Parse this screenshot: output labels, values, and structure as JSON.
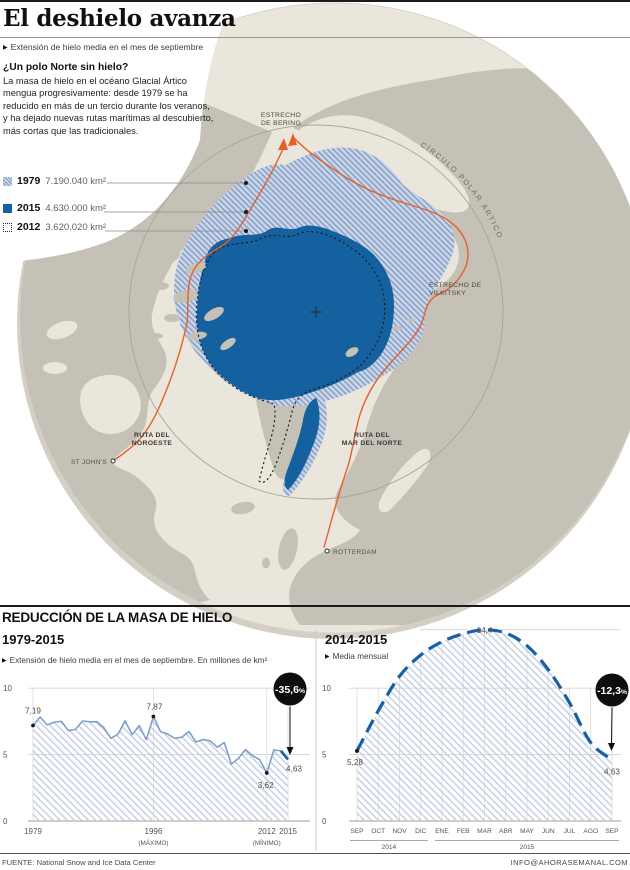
{
  "header": {
    "title": "El deshielo avanza",
    "subtitle": "Extensión de hielo media en el mes de septiembre",
    "bullet": "▶"
  },
  "intro": {
    "heading": "¿Un polo Norte sin hielo?",
    "body": "La masa de hielo en el océano Glacial Ártico mengua progresivamente: desde 1979 se ha reducido en más de un tercio durante los veranos, y ha dejado nuevas rutas marítimas al descubierto, más cortas que las tradicionales."
  },
  "legend": {
    "items": [
      {
        "year": "1979",
        "value": "7.190.040 km²",
        "swatch": "hatched"
      },
      {
        "year": "2015",
        "value": "4.630.000 km²",
        "swatch": "solid"
      },
      {
        "year": "2012",
        "value": "3.620.020 km²",
        "swatch": "dotted"
      }
    ]
  },
  "map": {
    "labels": {
      "bering": [
        "ESTRECHO",
        "DE BERING"
      ],
      "polar_circle": "CÍRCULO POLAR ÁRTICO",
      "vilkitsky": [
        "ESTRECHO DE",
        "VILKITSKY"
      ],
      "noroeste": [
        "RUTA DEL",
        "NOROESTE"
      ],
      "mar_norte": [
        "RUTA DEL",
        "MAR DEL NORTE"
      ],
      "st_johns": "ST JOHN'S",
      "rotterdam": "ROTTERDAM"
    },
    "palette": {
      "globe": "#ebe6dc",
      "globe_shadow": "#d3cfc5",
      "land": "#c6c1b7",
      "ice_2015": "#15619f",
      "ice_1979_bg": "#cdd6e7",
      "ice_1979_stripe": "#7d9bc6",
      "ice_2012_outline": "#1a1a1a",
      "route": "#e4602a",
      "polar_circle_line": "#a8a399"
    }
  },
  "section": {
    "title": "REDUCCIÓN DE LA MASA DE HIELO"
  },
  "chart_data": [
    {
      "type": "area",
      "title": "1979-2015",
      "subtitle": "Extensión de hielo media en el mes de septiembre. En millones de km²",
      "x": [
        1979,
        1980,
        1981,
        1982,
        1983,
        1984,
        1985,
        1986,
        1987,
        1988,
        1989,
        1990,
        1991,
        1992,
        1993,
        1994,
        1995,
        1996,
        1997,
        1998,
        1999,
        2000,
        2001,
        2002,
        2003,
        2004,
        2005,
        2006,
        2007,
        2008,
        2009,
        2010,
        2011,
        2012,
        2013,
        2014,
        2015
      ],
      "values": [
        7.19,
        7.83,
        7.24,
        7.44,
        7.51,
        6.8,
        6.91,
        7.53,
        7.47,
        7.48,
        7.03,
        6.23,
        6.54,
        7.54,
        6.5,
        7.18,
        6.12,
        7.87,
        6.73,
        6.55,
        6.23,
        6.31,
        6.74,
        5.95,
        6.13,
        6.04,
        5.56,
        5.91,
        4.29,
        4.72,
        5.38,
        4.92,
        4.61,
        3.62,
        5.35,
        5.28,
        4.63
      ],
      "yticks": [
        0,
        5,
        10
      ],
      "ylim": [
        0,
        10
      ],
      "xticks": [
        {
          "year": 1979,
          "label": "1979",
          "sub": ""
        },
        {
          "year": 1996,
          "label": "1996",
          "sub": "(MÁXIMO)"
        },
        {
          "year": 2012,
          "label": "2012",
          "sub": "(MÍNIMO)"
        },
        {
          "year": 2015,
          "label": "2015",
          "sub": ""
        }
      ],
      "annotations": [
        {
          "year": 1979,
          "label": "7,19"
        },
        {
          "year": 1996,
          "label": "7,87"
        },
        {
          "year": 2012,
          "label": "3,62"
        },
        {
          "year": 2015,
          "label": "4,63"
        }
      ],
      "badge": {
        "value": "-35,6",
        "unit": "%"
      },
      "line_color": "#80a0ca",
      "final_segment_color": "#1b5fa5"
    },
    {
      "type": "area-dashed",
      "title": "2014-2015",
      "subtitle": "Media mensual",
      "categories": [
        "SEP",
        "OCT",
        "NOV",
        "DIC",
        "ENE",
        "FEB",
        "MAR",
        "ABR",
        "MAY",
        "JUN",
        "JUL",
        "AGO",
        "SEP"
      ],
      "values": [
        5.28,
        8.3,
        10.9,
        12.5,
        13.5,
        14.1,
        14.4,
        14.15,
        13.2,
        11.4,
        8.9,
        5.9,
        4.63
      ],
      "yticks": [
        0,
        5,
        10
      ],
      "ylim": [
        0,
        15
      ],
      "year_groups": [
        {
          "label": "2014",
          "from": 0,
          "to": 3
        },
        {
          "label": "2015",
          "from": 4,
          "to": 12
        }
      ],
      "annotations": [
        {
          "i": 0,
          "label": "5,28"
        },
        {
          "i": 6,
          "label": "14,4"
        },
        {
          "i": 12,
          "label": "4,63"
        }
      ],
      "badge": {
        "value": "-12,3",
        "unit": "%"
      },
      "line_color": "#1560a5"
    }
  ],
  "footer": {
    "source": "FUENTE: National Snow and Ice Data Center",
    "credit": "INFO@AHORASEMANAL.COM"
  }
}
